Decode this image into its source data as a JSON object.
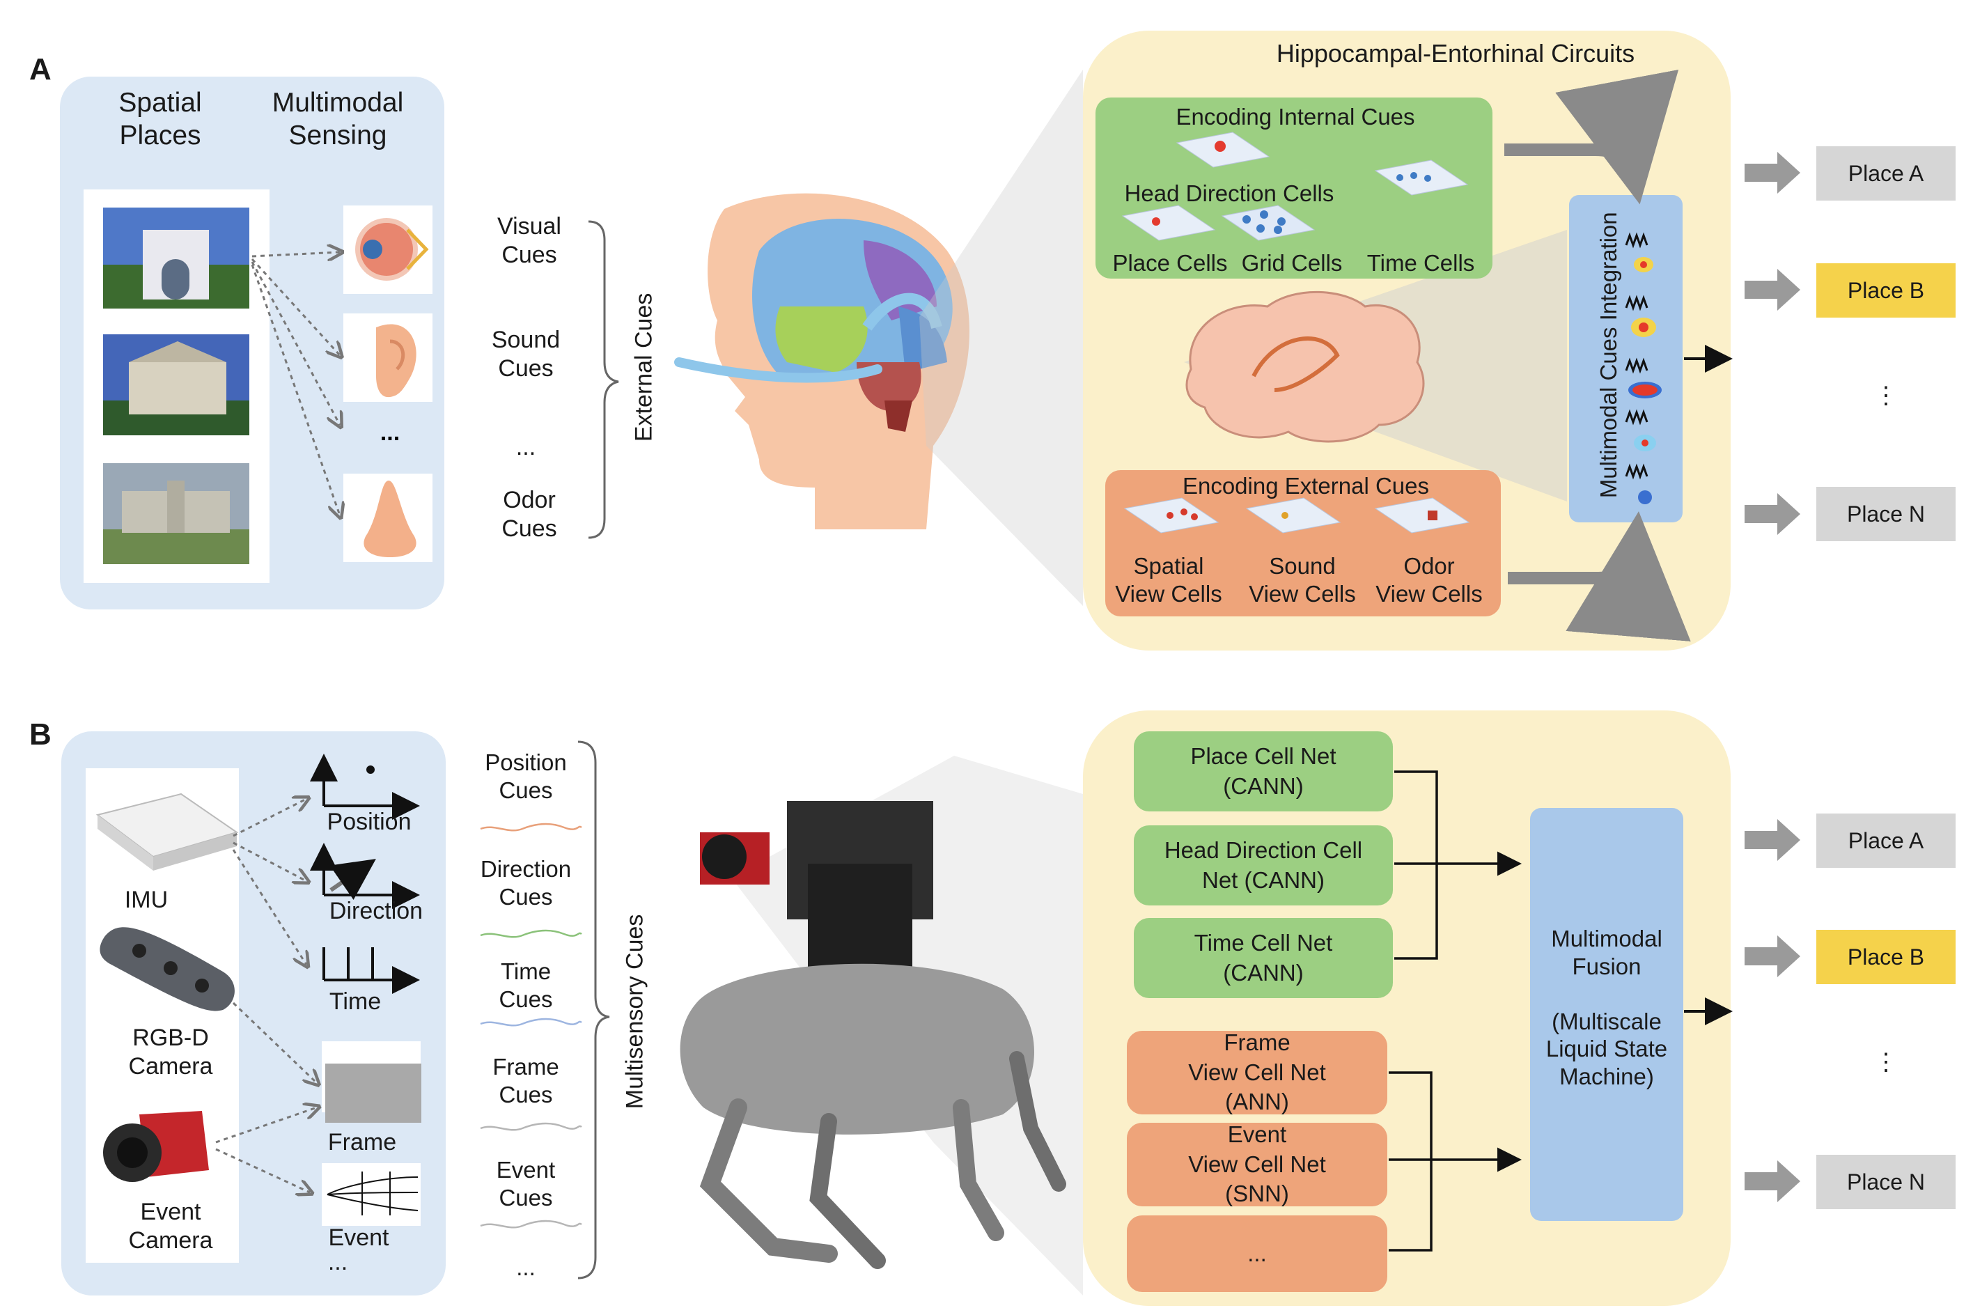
{
  "panel_a": {
    "letter": "A",
    "col_spatial_places": "Spatial\nPlaces",
    "col_multimodal_sensing": "Multimodal\nSensing",
    "sensing_ellipsis": "...",
    "cues": [
      "Visual\nCues",
      "Sound\nCues",
      "...",
      "Odor\nCues"
    ],
    "external_cues_label": "External Cues",
    "circuits_title": "Hippocampal-Entorhinal Circuits",
    "internal": {
      "title": "Encoding Internal Cues",
      "head_direction": "Head Direction Cells",
      "place": "Place Cells",
      "grid": "Grid Cells",
      "time": "Time Cells"
    },
    "external": {
      "title": "Encoding External Cues",
      "spatial": "Spatial\nView Cells",
      "sound": "Sound\nView Cells",
      "odor": "Odor\nView Cells"
    },
    "integration_label": "Multimodal Cues Integration",
    "places": [
      "Place A",
      "Place B",
      "⋮",
      "Place N"
    ]
  },
  "panel_b": {
    "letter": "B",
    "sensors": [
      "IMU",
      "RGB-D\nCamera",
      "Event\nCamera"
    ],
    "signals": [
      "Position",
      "Direction",
      "Time",
      "Frame",
      "Event",
      "..."
    ],
    "cues": [
      "Position\nCues",
      "Direction\nCues",
      "Time\nCues",
      "Frame\nCues",
      "Event\nCues",
      "..."
    ],
    "multisensory_label": "Multisensory Cues",
    "green_nets": [
      "Place Cell Net\n(CANN)",
      "Head Direction Cell\nNet (CANN)",
      "Time Cell Net\n(CANN)"
    ],
    "orange_nets": [
      "Frame\nView Cell Net\n(ANN)",
      "Event\nView Cell Net\n(SNN)",
      "..."
    ],
    "fusion": "Multimodal\nFusion\n\n(Multiscale\nLiquid State\nMachine)",
    "places": [
      "Place A",
      "Place B",
      "⋮",
      "Place N"
    ]
  },
  "colors": {
    "blue_panel": "#dce8f5",
    "yellow_panel": "#fbf0c8",
    "green": "#9ccf82",
    "orange": "#eea47a",
    "fusion_blue": "#a9c8ea",
    "place_gray": "#d6d6d6",
    "place_yellow": "#f5d24b"
  }
}
